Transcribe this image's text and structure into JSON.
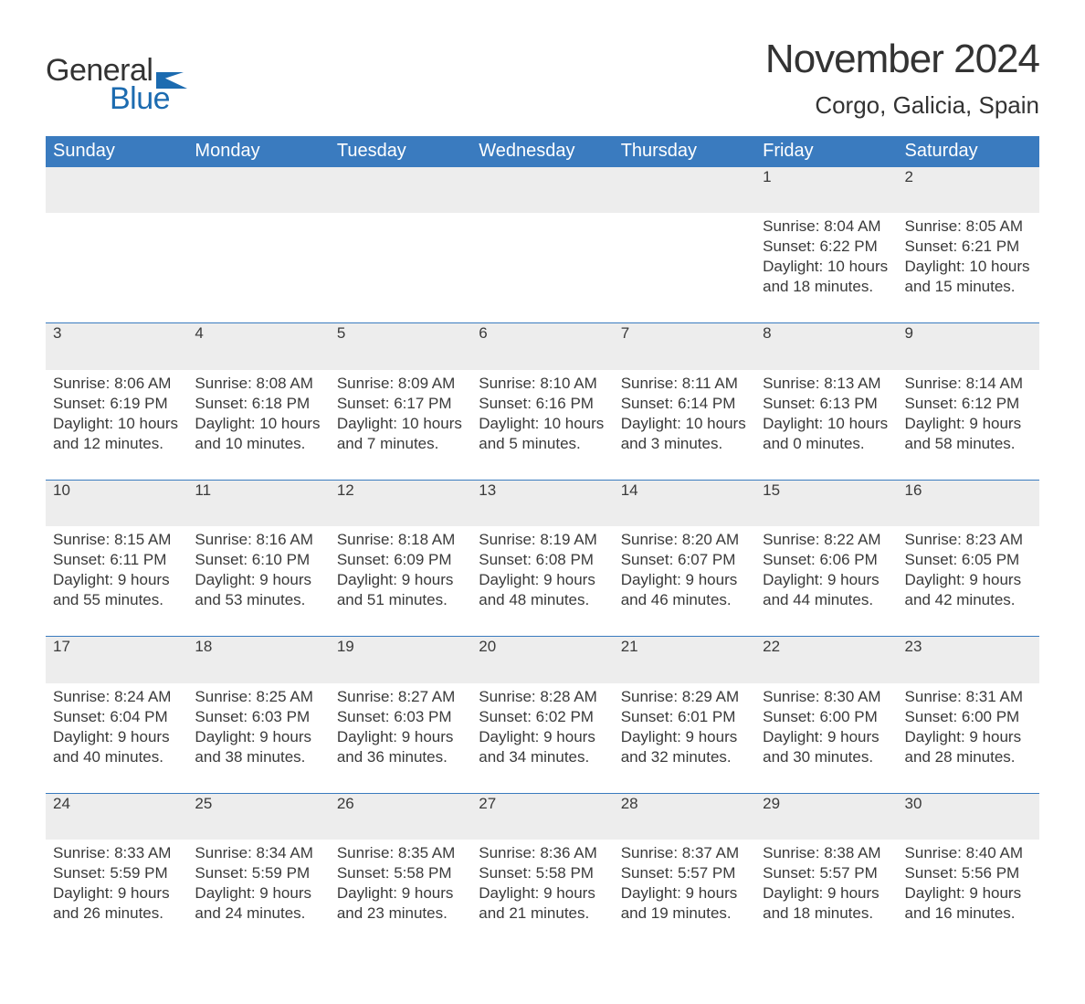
{
  "brand": {
    "part1": "General",
    "part2": "Blue"
  },
  "title": {
    "month": "November 2024",
    "location": "Corgo, Galicia, Spain"
  },
  "colors": {
    "header_bg": "#3a7bbf",
    "header_text": "#ffffff",
    "week_border": "#3a7bbf",
    "daynum_bg": "#ededed",
    "text": "#3a3a3a",
    "brand_blue": "#1c6bb0"
  },
  "weekdays": [
    "Sunday",
    "Monday",
    "Tuesday",
    "Wednesday",
    "Thursday",
    "Friday",
    "Saturday"
  ],
  "weeks": [
    [
      null,
      null,
      null,
      null,
      null,
      {
        "day": "1",
        "sunrise": "Sunrise: 8:04 AM",
        "sunset": "Sunset: 6:22 PM",
        "daylight": "Daylight: 10 hours and 18 minutes."
      },
      {
        "day": "2",
        "sunrise": "Sunrise: 8:05 AM",
        "sunset": "Sunset: 6:21 PM",
        "daylight": "Daylight: 10 hours and 15 minutes."
      }
    ],
    [
      {
        "day": "3",
        "sunrise": "Sunrise: 8:06 AM",
        "sunset": "Sunset: 6:19 PM",
        "daylight": "Daylight: 10 hours and 12 minutes."
      },
      {
        "day": "4",
        "sunrise": "Sunrise: 8:08 AM",
        "sunset": "Sunset: 6:18 PM",
        "daylight": "Daylight: 10 hours and 10 minutes."
      },
      {
        "day": "5",
        "sunrise": "Sunrise: 8:09 AM",
        "sunset": "Sunset: 6:17 PM",
        "daylight": "Daylight: 10 hours and 7 minutes."
      },
      {
        "day": "6",
        "sunrise": "Sunrise: 8:10 AM",
        "sunset": "Sunset: 6:16 PM",
        "daylight": "Daylight: 10 hours and 5 minutes."
      },
      {
        "day": "7",
        "sunrise": "Sunrise: 8:11 AM",
        "sunset": "Sunset: 6:14 PM",
        "daylight": "Daylight: 10 hours and 3 minutes."
      },
      {
        "day": "8",
        "sunrise": "Sunrise: 8:13 AM",
        "sunset": "Sunset: 6:13 PM",
        "daylight": "Daylight: 10 hours and 0 minutes."
      },
      {
        "day": "9",
        "sunrise": "Sunrise: 8:14 AM",
        "sunset": "Sunset: 6:12 PM",
        "daylight": "Daylight: 9 hours and 58 minutes."
      }
    ],
    [
      {
        "day": "10",
        "sunrise": "Sunrise: 8:15 AM",
        "sunset": "Sunset: 6:11 PM",
        "daylight": "Daylight: 9 hours and 55 minutes."
      },
      {
        "day": "11",
        "sunrise": "Sunrise: 8:16 AM",
        "sunset": "Sunset: 6:10 PM",
        "daylight": "Daylight: 9 hours and 53 minutes."
      },
      {
        "day": "12",
        "sunrise": "Sunrise: 8:18 AM",
        "sunset": "Sunset: 6:09 PM",
        "daylight": "Daylight: 9 hours and 51 minutes."
      },
      {
        "day": "13",
        "sunrise": "Sunrise: 8:19 AM",
        "sunset": "Sunset: 6:08 PM",
        "daylight": "Daylight: 9 hours and 48 minutes."
      },
      {
        "day": "14",
        "sunrise": "Sunrise: 8:20 AM",
        "sunset": "Sunset: 6:07 PM",
        "daylight": "Daylight: 9 hours and 46 minutes."
      },
      {
        "day": "15",
        "sunrise": "Sunrise: 8:22 AM",
        "sunset": "Sunset: 6:06 PM",
        "daylight": "Daylight: 9 hours and 44 minutes."
      },
      {
        "day": "16",
        "sunrise": "Sunrise: 8:23 AM",
        "sunset": "Sunset: 6:05 PM",
        "daylight": "Daylight: 9 hours and 42 minutes."
      }
    ],
    [
      {
        "day": "17",
        "sunrise": "Sunrise: 8:24 AM",
        "sunset": "Sunset: 6:04 PM",
        "daylight": "Daylight: 9 hours and 40 minutes."
      },
      {
        "day": "18",
        "sunrise": "Sunrise: 8:25 AM",
        "sunset": "Sunset: 6:03 PM",
        "daylight": "Daylight: 9 hours and 38 minutes."
      },
      {
        "day": "19",
        "sunrise": "Sunrise: 8:27 AM",
        "sunset": "Sunset: 6:03 PM",
        "daylight": "Daylight: 9 hours and 36 minutes."
      },
      {
        "day": "20",
        "sunrise": "Sunrise: 8:28 AM",
        "sunset": "Sunset: 6:02 PM",
        "daylight": "Daylight: 9 hours and 34 minutes."
      },
      {
        "day": "21",
        "sunrise": "Sunrise: 8:29 AM",
        "sunset": "Sunset: 6:01 PM",
        "daylight": "Daylight: 9 hours and 32 minutes."
      },
      {
        "day": "22",
        "sunrise": "Sunrise: 8:30 AM",
        "sunset": "Sunset: 6:00 PM",
        "daylight": "Daylight: 9 hours and 30 minutes."
      },
      {
        "day": "23",
        "sunrise": "Sunrise: 8:31 AM",
        "sunset": "Sunset: 6:00 PM",
        "daylight": "Daylight: 9 hours and 28 minutes."
      }
    ],
    [
      {
        "day": "24",
        "sunrise": "Sunrise: 8:33 AM",
        "sunset": "Sunset: 5:59 PM",
        "daylight": "Daylight: 9 hours and 26 minutes."
      },
      {
        "day": "25",
        "sunrise": "Sunrise: 8:34 AM",
        "sunset": "Sunset: 5:59 PM",
        "daylight": "Daylight: 9 hours and 24 minutes."
      },
      {
        "day": "26",
        "sunrise": "Sunrise: 8:35 AM",
        "sunset": "Sunset: 5:58 PM",
        "daylight": "Daylight: 9 hours and 23 minutes."
      },
      {
        "day": "27",
        "sunrise": "Sunrise: 8:36 AM",
        "sunset": "Sunset: 5:58 PM",
        "daylight": "Daylight: 9 hours and 21 minutes."
      },
      {
        "day": "28",
        "sunrise": "Sunrise: 8:37 AM",
        "sunset": "Sunset: 5:57 PM",
        "daylight": "Daylight: 9 hours and 19 minutes."
      },
      {
        "day": "29",
        "sunrise": "Sunrise: 8:38 AM",
        "sunset": "Sunset: 5:57 PM",
        "daylight": "Daylight: 9 hours and 18 minutes."
      },
      {
        "day": "30",
        "sunrise": "Sunrise: 8:40 AM",
        "sunset": "Sunset: 5:56 PM",
        "daylight": "Daylight: 9 hours and 16 minutes."
      }
    ]
  ]
}
